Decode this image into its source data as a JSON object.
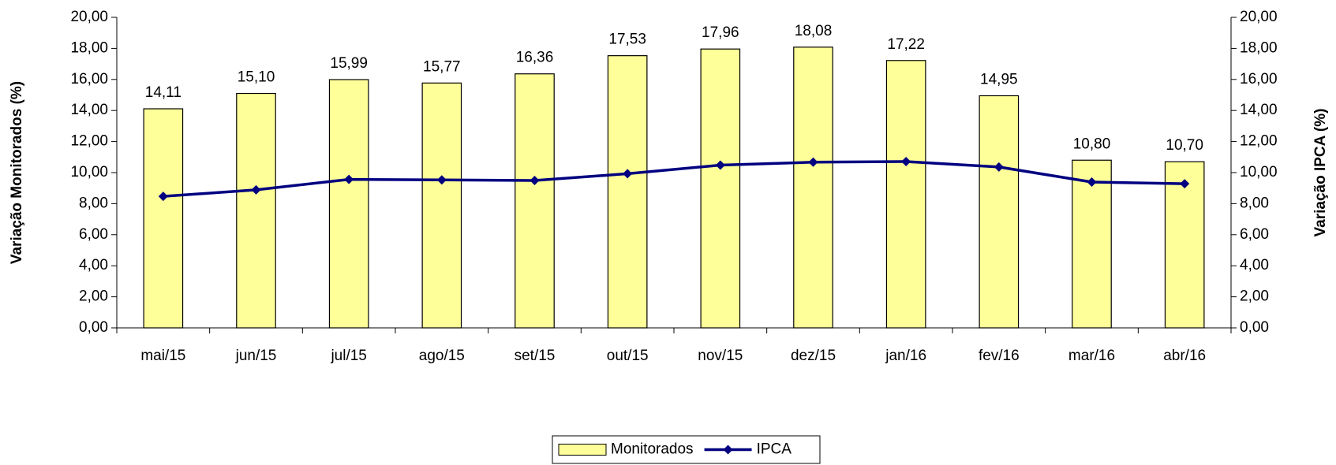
{
  "chart_data": {
    "type": "bar",
    "categories": [
      "mai/15",
      "jun/15",
      "jul/15",
      "ago/15",
      "set/15",
      "out/15",
      "nov/15",
      "dez/15",
      "jan/16",
      "fev/16",
      "mar/16",
      "abr/16"
    ],
    "series": [
      {
        "name": "Monitorados",
        "type": "bar",
        "color": "#ffff99",
        "values": [
          14.11,
          15.1,
          15.99,
          15.77,
          16.36,
          17.53,
          17.96,
          18.08,
          17.22,
          14.95,
          10.8,
          10.7
        ],
        "value_labels": [
          "14,11",
          "15,10",
          "15,99",
          "15,77",
          "16,36",
          "17,53",
          "17,96",
          "18,08",
          "17,22",
          "14,95",
          "10,80",
          "10,70"
        ]
      },
      {
        "name": "IPCA",
        "type": "line",
        "axis": "y2",
        "color": "#000080",
        "values": [
          8.47,
          8.89,
          9.56,
          9.53,
          9.49,
          9.93,
          10.48,
          10.67,
          10.71,
          10.36,
          9.39,
          9.28
        ]
      }
    ],
    "ylabel": "Variação Monitorados (%)",
    "y2label": "Variação IPCA (%)",
    "ylim": [
      0,
      20
    ],
    "yticks": [
      {
        "value": 0,
        "label": "0,00"
      },
      {
        "value": 2,
        "label": "2,00"
      },
      {
        "value": 4,
        "label": "4,00"
      },
      {
        "value": 6,
        "label": "6,00"
      },
      {
        "value": 8,
        "label": "8,00"
      },
      {
        "value": 10,
        "label": "10,00"
      },
      {
        "value": 12,
        "label": "12,00"
      },
      {
        "value": 14,
        "label": "14,00"
      },
      {
        "value": 16,
        "label": "16,00"
      },
      {
        "value": 18,
        "label": "18,00"
      },
      {
        "value": 20,
        "label": "20,00"
      }
    ],
    "y2lim": [
      0,
      20
    ],
    "y2ticks": [
      {
        "value": 0,
        "label": "0,00"
      },
      {
        "value": 2,
        "label": "2,00"
      },
      {
        "value": 4,
        "label": "4,00"
      },
      {
        "value": 6,
        "label": "6,00"
      },
      {
        "value": 8,
        "label": "8,00"
      },
      {
        "value": 10,
        "label": "10,00"
      },
      {
        "value": 12,
        "label": "12,00"
      },
      {
        "value": 14,
        "label": "14,00"
      },
      {
        "value": 16,
        "label": "16,00"
      },
      {
        "value": 18,
        "label": "18,00"
      },
      {
        "value": 20,
        "label": "20,00"
      }
    ],
    "legend": "bottom",
    "grid": false
  }
}
